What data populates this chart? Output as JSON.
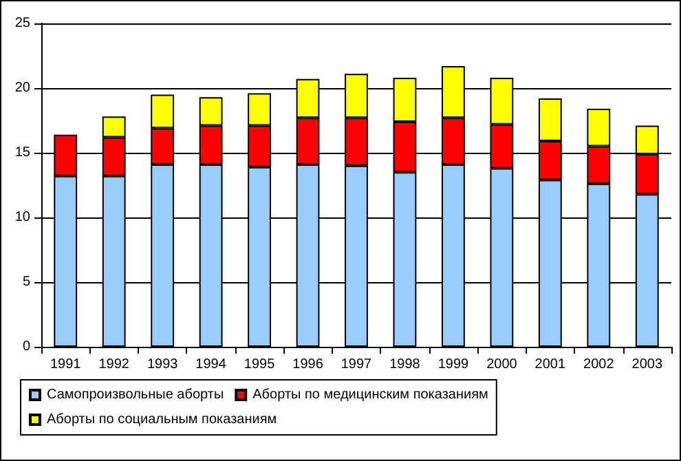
{
  "chart_data": {
    "type": "bar",
    "stacked": true,
    "categories": [
      "1991",
      "1992",
      "1993",
      "1994",
      "1995",
      "1996",
      "1997",
      "1998",
      "1999",
      "2000",
      "2001",
      "2002",
      "2003"
    ],
    "series": [
      {
        "name": "Самопроизвольные аборты",
        "color": "#99ccff",
        "values": [
          13.2,
          13.2,
          14.1,
          14.1,
          13.9,
          14.1,
          14.0,
          13.5,
          14.1,
          13.8,
          12.9,
          12.6,
          11.8
        ]
      },
      {
        "name": "Аборты по медицинским показаниям",
        "color": "#ff0000",
        "values": [
          3.2,
          3.0,
          2.8,
          3.0,
          3.2,
          3.6,
          3.7,
          3.9,
          3.6,
          3.4,
          3.0,
          2.9,
          3.1
        ]
      },
      {
        "name": "Аборты по социальным показаниям",
        "color": "#ffff00",
        "values": [
          null,
          1.6,
          2.6,
          2.2,
          2.5,
          3.0,
          3.4,
          3.4,
          4.0,
          3.6,
          3.3,
          2.9,
          2.2
        ]
      }
    ],
    "ylim": [
      0,
      25
    ],
    "yticks": [
      0,
      5,
      10,
      15,
      20,
      25
    ],
    "grid": "y",
    "legend": "bottom"
  }
}
